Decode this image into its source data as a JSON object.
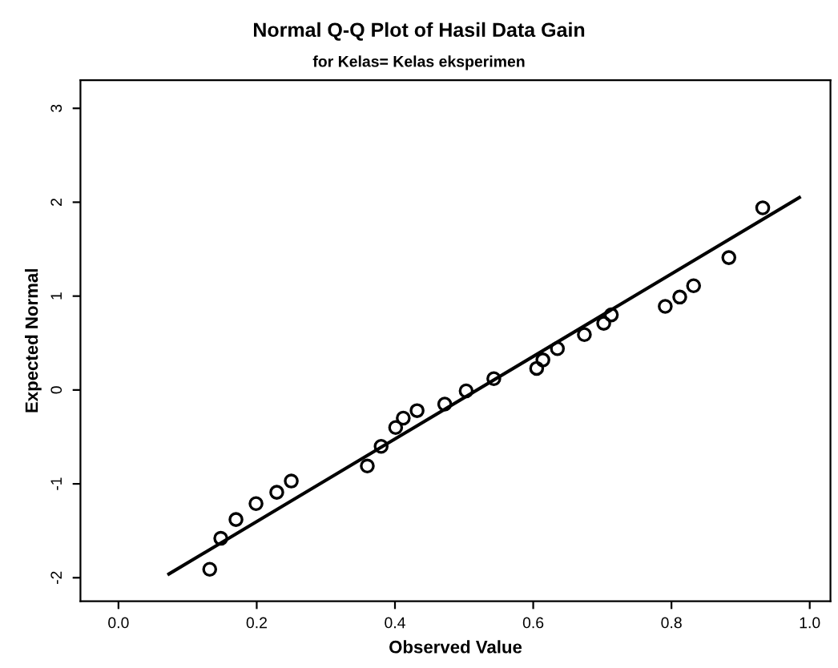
{
  "chart_data": {
    "type": "scatter",
    "title": "Normal Q-Q Plot of Hasil Data Gain",
    "subtitle": "for Kelas= Kelas eksperimen",
    "xlabel": "Observed Value",
    "ylabel": "Expected Normal",
    "series": [
      {
        "color": "#000000",
        "marker": "circle",
        "x": [
          0.132,
          0.148,
          0.17,
          0.199,
          0.229,
          0.25,
          0.36,
          0.38,
          0.401,
          0.412,
          0.432,
          0.472,
          0.503,
          0.543,
          0.605,
          0.614,
          0.635,
          0.674,
          0.702,
          0.713,
          0.791,
          0.812,
          0.832,
          0.883,
          0.932
        ],
        "values": [
          -1.91,
          -1.58,
          -1.38,
          -1.21,
          -1.09,
          -0.97,
          -0.81,
          -0.6,
          -0.4,
          -0.3,
          -0.22,
          -0.15,
          -0.01,
          0.12,
          0.23,
          0.32,
          0.44,
          0.59,
          0.71,
          0.8,
          0.89,
          0.99,
          1.11,
          1.41,
          1.94
        ]
      },
      {
        "type": "line",
        "color": "#000000",
        "x": [
          0.073,
          0.985
        ],
        "values": [
          -1.96,
          2.05
        ]
      }
    ],
    "xlim": [
      -0.055,
      1.03
    ],
    "ylim": [
      -2.25,
      3.3
    ],
    "xticks": [
      {
        "value": 0.0,
        "label": "0.0"
      },
      {
        "value": 0.2,
        "label": "0.2"
      },
      {
        "value": 0.4,
        "label": "0.4"
      },
      {
        "value": 0.6,
        "label": "0.6"
      },
      {
        "value": 0.8,
        "label": "0.8"
      },
      {
        "value": 1.0,
        "label": "1.0"
      }
    ],
    "yticks": [
      -2,
      -1,
      0,
      1,
      2,
      3
    ],
    "grid": false,
    "legend": false
  }
}
